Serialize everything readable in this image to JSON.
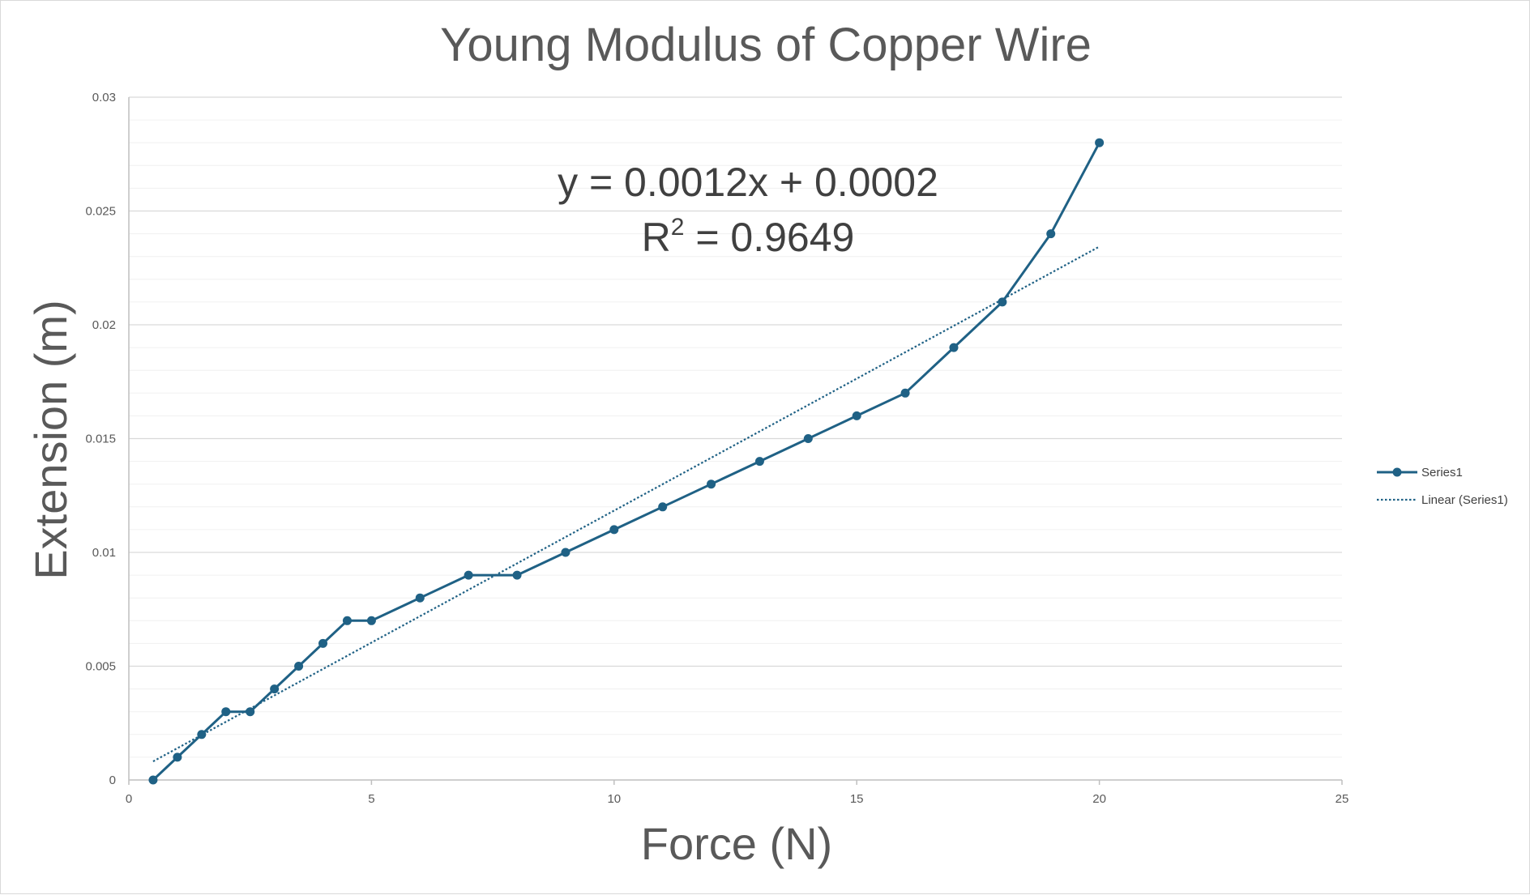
{
  "chart_data": {
    "type": "line",
    "title": "Young Modulus of Copper Wire",
    "xlabel": "Force (N)",
    "ylabel": "Extension (m)",
    "xlim": [
      0,
      25
    ],
    "ylim": [
      0,
      0.03
    ],
    "x_ticks": [
      0,
      5,
      10,
      15,
      20,
      25
    ],
    "y_ticks": [
      0,
      0.005,
      0.01,
      0.015,
      0.02,
      0.025,
      0.03
    ],
    "x_tick_labels": [
      "0",
      "5",
      "10",
      "15",
      "20",
      "25"
    ],
    "y_tick_labels": [
      "0",
      "0.005",
      "0.01",
      "0.015",
      "0.02",
      "0.025",
      "0.03"
    ],
    "grid": true,
    "legend_position": "right",
    "series": [
      {
        "name": "Series1",
        "color": "#1f6185",
        "marker": "circle",
        "x": [
          0.5,
          1,
          1.5,
          2,
          2.5,
          3,
          3.5,
          4,
          4.5,
          5,
          6,
          7,
          8,
          9,
          10,
          11,
          12,
          13,
          14,
          15,
          16,
          17,
          18,
          19,
          20
        ],
        "y": [
          0,
          0.001,
          0.002,
          0.003,
          0.003,
          0.004,
          0.005,
          0.006,
          0.007,
          0.007,
          0.008,
          0.009,
          0.009,
          0.01,
          0.011,
          0.012,
          0.013,
          0.014,
          0.015,
          0.016,
          0.017,
          0.019,
          0.021,
          0.024,
          0.028
        ]
      }
    ],
    "trendline": {
      "name": "Linear (Series1)",
      "type": "linear",
      "color": "#1f6185",
      "style": "dotted",
      "x_range": [
        0.5,
        20
      ],
      "equation_text": "y = 0.0012x + 0.0002",
      "r2_prefix": "R",
      "r2_exp": "2",
      "r2_suffix": " = 0.9649"
    }
  }
}
